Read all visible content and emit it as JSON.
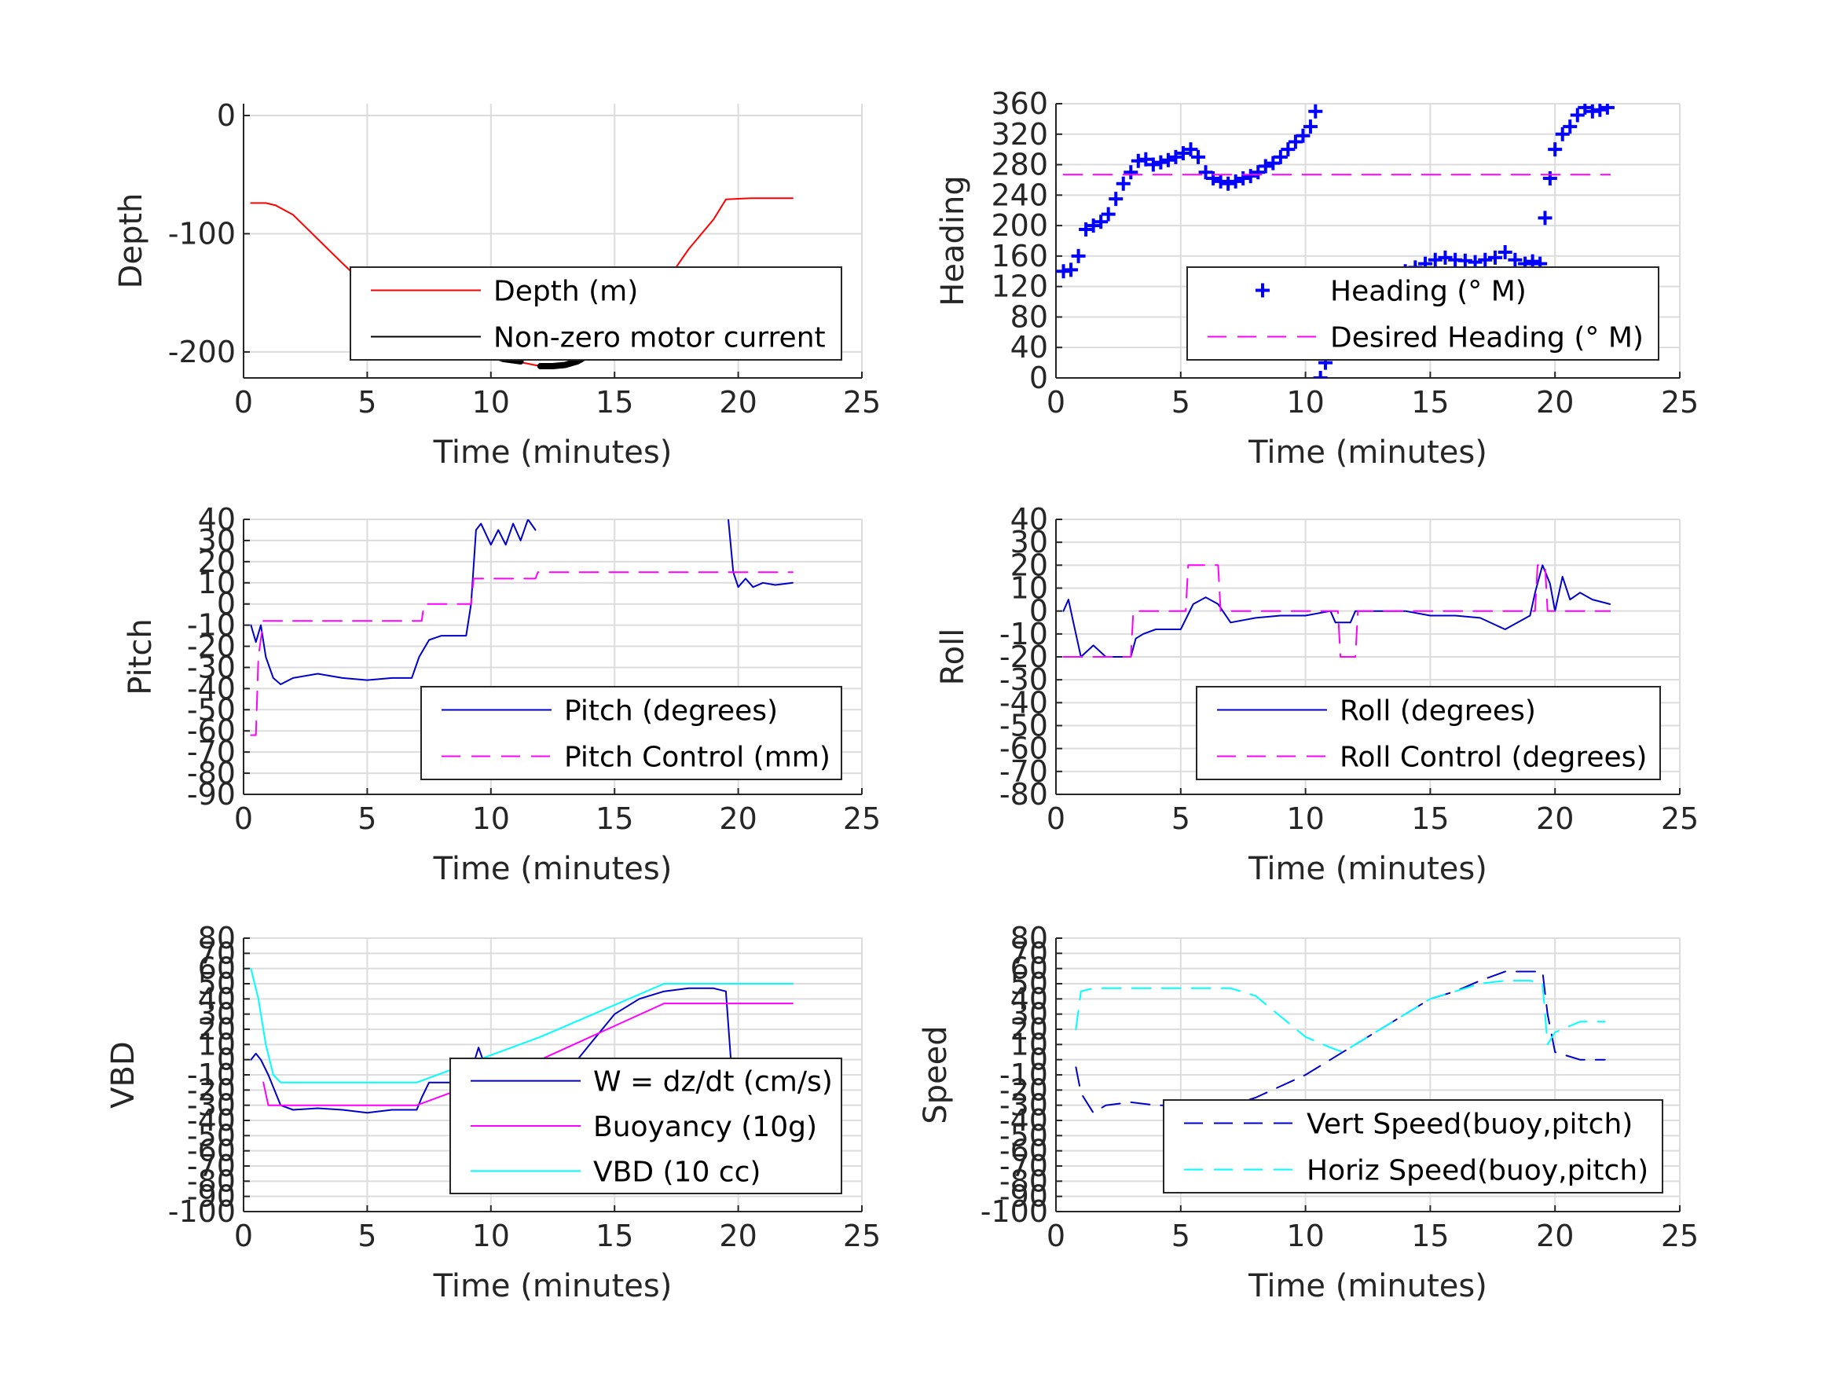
{
  "chart_data": [
    {
      "id": "depth",
      "type": "line",
      "xlabel": "Time (minutes)",
      "ylabel": "Depth",
      "xlim": [
        0,
        25
      ],
      "ylim": [
        -222,
        10
      ],
      "xticks": [
        0,
        5,
        10,
        15,
        20,
        25
      ],
      "yticks": [
        0,
        -100,
        -200
      ],
      "grid": true,
      "legend_placement": "bottom-right",
      "series": [
        {
          "name": "Depth (m)",
          "color": "#ff0000",
          "style": "solid",
          "width": 2,
          "x": [
            0.3,
            0.9,
            1.3,
            2,
            4,
            6,
            7,
            8,
            9,
            10,
            11,
            11.5,
            12,
            12.5,
            13,
            14,
            15,
            16,
            17,
            18,
            19,
            19.5,
            20.5,
            22.2
          ],
          "y": [
            -74,
            -74,
            -76,
            -84,
            -125,
            -165,
            -185,
            -195,
            -202,
            -203,
            -208,
            -210,
            -212,
            -212,
            -211,
            -203,
            -190,
            -170,
            -143,
            -113,
            -88,
            -71,
            -70,
            -70
          ]
        },
        {
          "name": "Non-zero motor current",
          "color": "#000000",
          "style": "thick",
          "width": 8,
          "segments": [
            {
              "x": [
                7,
                7.5,
                8,
                8.5,
                9,
                9.5,
                10,
                10.5,
                11.2
              ],
              "y": [
                -186,
                -191,
                -195,
                -198,
                -202,
                -200,
                -202,
                -206,
                -208
              ]
            },
            {
              "x": [
                12,
                12.5,
                13,
                13.5,
                14,
                14.5,
                15,
                15.5,
                16,
                16.5,
                16.8
              ],
              "y": [
                -212,
                -212,
                -211,
                -208,
                -202,
                -195,
                -187,
                -177,
                -165,
                -152,
                -145
              ]
            }
          ]
        }
      ]
    },
    {
      "id": "heading",
      "type": "scatter",
      "xlabel": "Time (minutes)",
      "ylabel": "Heading",
      "xlim": [
        0,
        25
      ],
      "ylim": [
        0,
        360
      ],
      "xticks": [
        0,
        5,
        10,
        15,
        20,
        25
      ],
      "yticks": [
        0,
        40,
        80,
        120,
        160,
        200,
        240,
        280,
        320,
        360
      ],
      "grid": true,
      "legend_placement": "bottom-right",
      "series": [
        {
          "name": "Heading (° M)",
          "color": "#0000ff",
          "style": "plus",
          "x": [
            0.3,
            0.6,
            0.9,
            1.2,
            1.5,
            1.8,
            2.1,
            2.4,
            2.7,
            3.0,
            3.3,
            3.6,
            3.9,
            4.2,
            4.5,
            4.8,
            5.1,
            5.4,
            5.7,
            6.0,
            6.3,
            6.6,
            6.9,
            7.2,
            7.5,
            7.8,
            8.1,
            8.4,
            8.7,
            9.0,
            9.3,
            9.6,
            9.9,
            10.2,
            10.4,
            10.6,
            10.8,
            11.1,
            11.4,
            11.7,
            12.0,
            12.4,
            12.8,
            13.2,
            13.6,
            14.0,
            14.4,
            14.8,
            15.2,
            15.6,
            16.0,
            16.4,
            16.8,
            17.2,
            17.6,
            18.0,
            18.4,
            18.8,
            19.1,
            19.4,
            19.6,
            19.8,
            20.0,
            20.3,
            20.6,
            20.9,
            21.2,
            21.5,
            21.8,
            22.1
          ],
          "y": [
            140,
            142,
            160,
            195,
            200,
            205,
            215,
            235,
            255,
            270,
            285,
            287,
            280,
            283,
            286,
            290,
            295,
            300,
            290,
            270,
            262,
            258,
            255,
            258,
            262,
            265,
            270,
            278,
            282,
            290,
            300,
            310,
            318,
            330,
            350,
            0,
            20,
            60,
            90,
            105,
            115,
            120,
            125,
            130,
            135,
            140,
            145,
            150,
            155,
            158,
            155,
            154,
            152,
            155,
            158,
            165,
            155,
            150,
            153,
            150,
            210,
            262,
            300,
            320,
            330,
            345,
            355,
            350,
            352,
            355
          ]
        },
        {
          "name": "Desired Heading (° M)",
          "color": "#ff00ff",
          "style": "dashed",
          "x": [
            0.3,
            22.2
          ],
          "y": [
            267,
            267
          ]
        }
      ]
    },
    {
      "id": "pitch",
      "type": "line",
      "xlabel": "Time (minutes)",
      "ylabel": "Pitch",
      "xlim": [
        0,
        25
      ],
      "ylim": [
        -90,
        40
      ],
      "xticks": [
        0,
        5,
        10,
        15,
        20,
        25
      ],
      "yticks": [
        -90,
        -80,
        -70,
        -60,
        -50,
        -40,
        -30,
        -20,
        -10,
        0,
        10,
        20,
        30,
        40
      ],
      "grid": true,
      "legend_placement": "bottom-right",
      "series": [
        {
          "name": "Pitch (degrees)",
          "color": "#0000cc",
          "style": "solid",
          "segments": [
            {
              "x": [
                0.3,
                0.5,
                0.7,
                0.9,
                1.2,
                1.5,
                2,
                3,
                4,
                5,
                6,
                6.8,
                7.1,
                7.5,
                8,
                9,
                9.2,
                9.4,
                9.6,
                10,
                10.3,
                10.6,
                10.9,
                11.2,
                11.5,
                11.8
              ],
              "y": [
                -10,
                -18,
                -10,
                -25,
                -35,
                -38,
                -35,
                -33,
                -35,
                -36,
                -35,
                -35,
                -25,
                -17,
                -15,
                -15,
                0,
                35,
                38,
                28,
                35,
                28,
                38,
                30,
                40,
                35
              ]
            },
            {
              "x": [
                19.6,
                19.8,
                20,
                20.3,
                20.6,
                21,
                21.5,
                22.2
              ],
              "y": [
                40,
                15,
                8,
                12,
                8,
                10,
                9,
                10
              ]
            }
          ]
        },
        {
          "name": "Pitch Control (mm)",
          "color": "#ff00ff",
          "style": "dashed",
          "x": [
            0.3,
            0.5,
            0.6,
            0.8,
            7,
            7.2,
            7.3,
            9.2,
            9.3,
            11.8,
            11.9,
            22.2
          ],
          "y": [
            -62,
            -62,
            -25,
            -8,
            -8,
            -8,
            0,
            0,
            12,
            12,
            15,
            15
          ]
        }
      ]
    },
    {
      "id": "roll",
      "type": "line",
      "xlabel": "Time (minutes)",
      "ylabel": "Roll",
      "xlim": [
        0,
        25
      ],
      "ylim": [
        -80,
        40
      ],
      "xticks": [
        0,
        5,
        10,
        15,
        20,
        25
      ],
      "yticks": [
        -80,
        -70,
        -60,
        -50,
        -40,
        -30,
        -20,
        -10,
        0,
        10,
        20,
        30,
        40
      ],
      "grid": true,
      "legend_placement": "bottom-right",
      "series": [
        {
          "name": "Roll (degrees)",
          "color": "#0000cc",
          "style": "solid",
          "x": [
            0.3,
            0.5,
            0.7,
            1,
            1.5,
            2,
            3,
            3.2,
            3.5,
            4,
            5,
            5.5,
            6,
            6.5,
            7,
            8,
            9,
            10,
            11,
            11.2,
            11.8,
            12,
            13,
            14,
            15,
            16,
            17,
            18,
            19,
            19.2,
            19.5,
            19.8,
            20,
            20.3,
            20.6,
            21,
            21.5,
            22.2
          ],
          "y": [
            0,
            5,
            -5,
            -20,
            -15,
            -20,
            -20,
            -12,
            -10,
            -8,
            -8,
            3,
            6,
            3,
            -5,
            -3,
            -2,
            -2,
            0,
            -5,
            -5,
            0,
            0,
            0,
            -2,
            -2,
            -3,
            -8,
            -2,
            8,
            20,
            12,
            0,
            15,
            5,
            8,
            5,
            3
          ]
        },
        {
          "name": "Roll Control (degrees)",
          "color": "#ff00ff",
          "style": "dashed",
          "x": [
            0.3,
            0.5,
            0.6,
            3,
            3.1,
            5.2,
            5.3,
            6.5,
            6.6,
            11.3,
            11.4,
            12,
            12.1,
            19.2,
            19.3,
            19.6,
            19.7,
            22.2
          ],
          "y": [
            -20,
            -20,
            -20,
            -20,
            0,
            0,
            20,
            20,
            0,
            0,
            -20,
            -20,
            0,
            0,
            20,
            20,
            0,
            0
          ]
        }
      ]
    },
    {
      "id": "vbd",
      "type": "line",
      "xlabel": "Time (minutes)",
      "ylabel": "VBD",
      "xlim": [
        0,
        25
      ],
      "ylim": [
        -100,
        80
      ],
      "xticks": [
        0,
        5,
        10,
        15,
        20,
        25
      ],
      "yticks": [
        -100,
        -90,
        -80,
        -70,
        -60,
        -50,
        -40,
        -30,
        -20,
        -10,
        0,
        10,
        20,
        30,
        40,
        50,
        60,
        70,
        80
      ],
      "grid": true,
      "legend_placement": "bottom-right",
      "series": [
        {
          "name": "W = dz/dt (cm/s)",
          "color": "#0000cc",
          "style": "solid",
          "x": [
            0.3,
            0.5,
            0.7,
            1,
            1.5,
            2,
            3,
            4,
            5,
            6,
            7,
            7.2,
            7.5,
            8,
            9,
            9.2,
            9.5,
            10,
            11,
            12,
            13,
            14,
            15,
            16,
            17,
            18,
            19,
            19.5,
            19.7,
            20,
            21,
            22.2
          ],
          "y": [
            0,
            4,
            0,
            -10,
            -30,
            -33,
            -32,
            -33,
            -35,
            -33,
            -33,
            -25,
            -15,
            -15,
            -15,
            -8,
            8,
            -15,
            -15,
            -15,
            -10,
            10,
            30,
            40,
            45,
            47,
            47,
            45,
            0,
            0,
            0,
            0
          ]
        },
        {
          "name": "Buoyancy (10g)",
          "color": "#ff00ff",
          "style": "solid",
          "x": [
            0.8,
            1.0,
            7,
            12,
            17,
            22.2
          ],
          "y": [
            -15,
            -30,
            -30,
            0,
            37,
            37
          ]
        },
        {
          "name": "VBD (10 cc)",
          "color": "#00ffff",
          "style": "solid",
          "x": [
            0.3,
            0.6,
            0.9,
            1.2,
            1.5,
            7,
            12,
            17,
            22.2
          ],
          "y": [
            60,
            40,
            10,
            -10,
            -15,
            -15,
            15,
            50,
            50
          ]
        }
      ]
    },
    {
      "id": "speed",
      "type": "line",
      "xlabel": "Time (minutes)",
      "ylabel": "Speed",
      "xlim": [
        0,
        25
      ],
      "ylim": [
        -100,
        80
      ],
      "xticks": [
        0,
        5,
        10,
        15,
        20,
        25
      ],
      "yticks": [
        -100,
        -90,
        -80,
        -70,
        -60,
        -50,
        -40,
        -30,
        -20,
        -10,
        0,
        10,
        20,
        30,
        40,
        50,
        60,
        70,
        80
      ],
      "grid": true,
      "legend_placement": "bottom-right",
      "series": [
        {
          "name": "Vert Speed(buoy,pitch)",
          "color": "#0000cc",
          "style": "dashed",
          "x": [
            0.8,
            1.0,
            1.5,
            2,
            3,
            4,
            5,
            6,
            7,
            8,
            10,
            12,
            14,
            15,
            16,
            17,
            18,
            19,
            19.5,
            19.7,
            20,
            21,
            22.0
          ],
          "y": [
            -5,
            -22,
            -35,
            -30,
            -28,
            -30,
            -30,
            -30,
            -30,
            -25,
            -10,
            10,
            30,
            40,
            45,
            52,
            58,
            58,
            58,
            30,
            5,
            0,
            0
          ]
        },
        {
          "name": "Horiz Speed(buoy,pitch)",
          "color": "#00ffff",
          "style": "dashed",
          "x": [
            0.8,
            1.0,
            1.5,
            2,
            3,
            4,
            5,
            6,
            7,
            8,
            10,
            11,
            11.5,
            12,
            14,
            15,
            16,
            17,
            18,
            19,
            19.5,
            19.7,
            20,
            21,
            22.0
          ],
          "y": [
            20,
            45,
            47,
            47,
            47,
            47,
            47,
            47,
            47,
            42,
            15,
            8,
            5,
            10,
            30,
            40,
            45,
            50,
            52,
            52,
            50,
            10,
            18,
            25,
            25
          ]
        }
      ]
    }
  ]
}
